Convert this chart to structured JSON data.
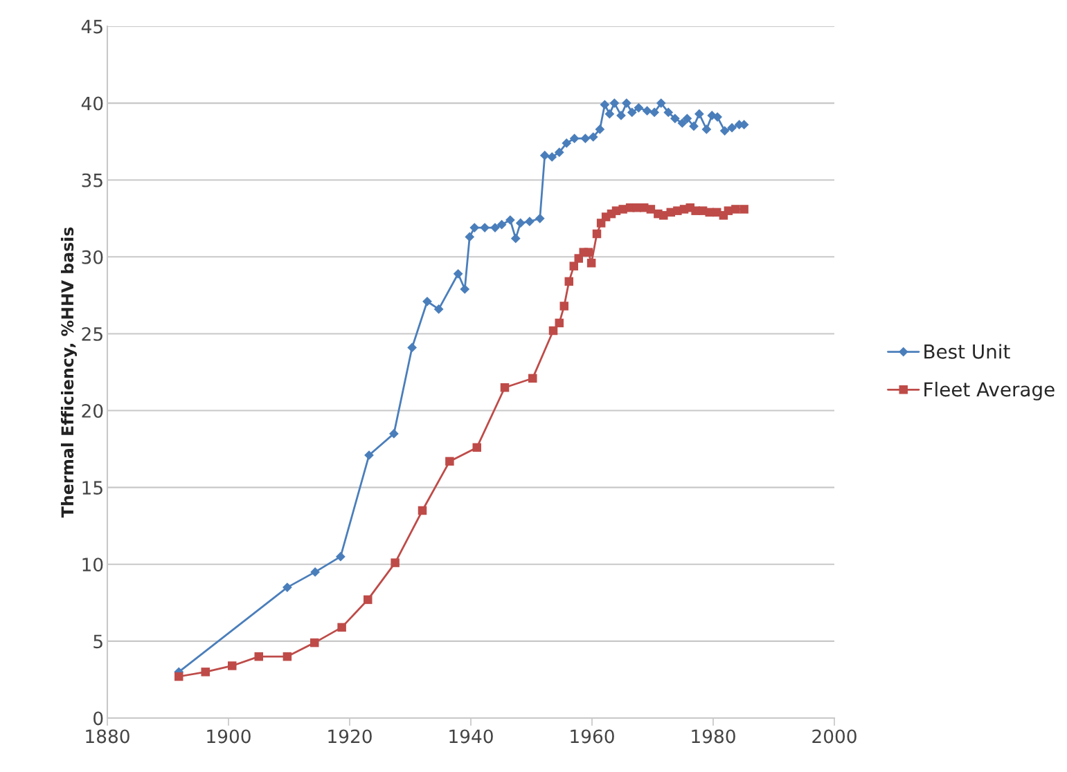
{
  "chart_data": {
    "type": "line",
    "ylabel": "Thermal Efficiency, %HHV basis",
    "xlim": [
      1880,
      2000
    ],
    "xticks": [
      1880,
      1900,
      1920,
      1940,
      1960,
      1980,
      2000
    ],
    "ylim": [
      0,
      45
    ],
    "yticks": [
      0,
      5,
      10,
      15,
      20,
      25,
      30,
      35,
      40,
      45
    ],
    "grid": "y",
    "legend": "right",
    "series": [
      {
        "name": "Best Unit",
        "color": "#4a7ebb",
        "marker": "diamond",
        "x": [
          1891.8,
          1909.7,
          1914.3,
          1918.5,
          1923.2,
          1927.3,
          1930.3,
          1932.8,
          1934.7,
          1937.9,
          1939.0,
          1939.8,
          1940.6,
          1942.3,
          1944.0,
          1945.1,
          1946.5,
          1947.4,
          1948.2,
          1949.7,
          1951.4,
          1952.2,
          1953.4,
          1954.6,
          1955.8,
          1957.1,
          1958.9,
          1960.2,
          1961.3,
          1962.1,
          1962.9,
          1963.7,
          1964.8,
          1965.7,
          1966.6,
          1967.7,
          1969.1,
          1970.3,
          1971.4,
          1972.6,
          1973.7,
          1974.9,
          1975.7,
          1976.8,
          1977.7,
          1978.9,
          1979.8,
          1980.7,
          1981.9,
          1983.1,
          1984.3,
          1985.1
        ],
        "values": [
          3.0,
          8.5,
          9.5,
          10.5,
          17.1,
          18.5,
          24.1,
          27.1,
          26.6,
          28.9,
          27.9,
          31.3,
          31.9,
          31.9,
          31.9,
          32.1,
          32.4,
          31.2,
          32.2,
          32.3,
          32.5,
          36.6,
          36.5,
          36.8,
          37.4,
          37.7,
          37.7,
          37.8,
          38.3,
          39.9,
          39.3,
          40.0,
          39.2,
          40.0,
          39.4,
          39.7,
          39.5,
          39.4,
          40.0,
          39.4,
          39.0,
          38.7,
          39.0,
          38.5,
          39.3,
          38.3,
          39.2,
          39.1,
          38.2,
          38.4,
          38.6,
          38.6
        ]
      },
      {
        "name": "Fleet Average",
        "color": "#be4b48",
        "marker": "square",
        "x": [
          1891.8,
          1896.2,
          1900.6,
          1905.0,
          1909.7,
          1914.2,
          1918.7,
          1923.0,
          1927.5,
          1932.0,
          1936.5,
          1941.0,
          1945.6,
          1950.2,
          1953.6,
          1954.6,
          1955.4,
          1956.2,
          1957.0,
          1957.8,
          1958.6,
          1959.4,
          1959.9,
          1960.8,
          1961.5,
          1962.3,
          1963.2,
          1964.0,
          1965.1,
          1966.3,
          1967.4,
          1968.6,
          1969.7,
          1970.9,
          1971.8,
          1973.0,
          1974.1,
          1975.2,
          1976.2,
          1977.1,
          1978.3,
          1979.4,
          1980.6,
          1981.7,
          1982.5,
          1983.7,
          1985.1
        ],
        "values": [
          2.7,
          3.0,
          3.4,
          4.0,
          4.0,
          4.9,
          5.9,
          7.7,
          10.1,
          13.5,
          16.7,
          17.6,
          21.5,
          22.1,
          25.2,
          25.7,
          26.8,
          28.4,
          29.4,
          29.9,
          30.3,
          30.3,
          29.6,
          31.5,
          32.2,
          32.6,
          32.8,
          33.0,
          33.1,
          33.2,
          33.2,
          33.2,
          33.1,
          32.8,
          32.7,
          32.9,
          33.0,
          33.1,
          33.2,
          33.0,
          33.0,
          32.9,
          32.9,
          32.7,
          33.0,
          33.1,
          33.1
        ]
      }
    ]
  }
}
